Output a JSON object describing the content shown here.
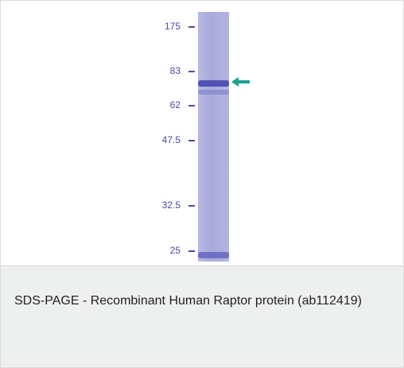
{
  "figure": {
    "markers": [
      "175",
      "83",
      "62",
      "47.5",
      "32.5",
      "25"
    ],
    "caption": "SDS-PAGE - Recombinant Human Raptor protein (ab112419)"
  }
}
